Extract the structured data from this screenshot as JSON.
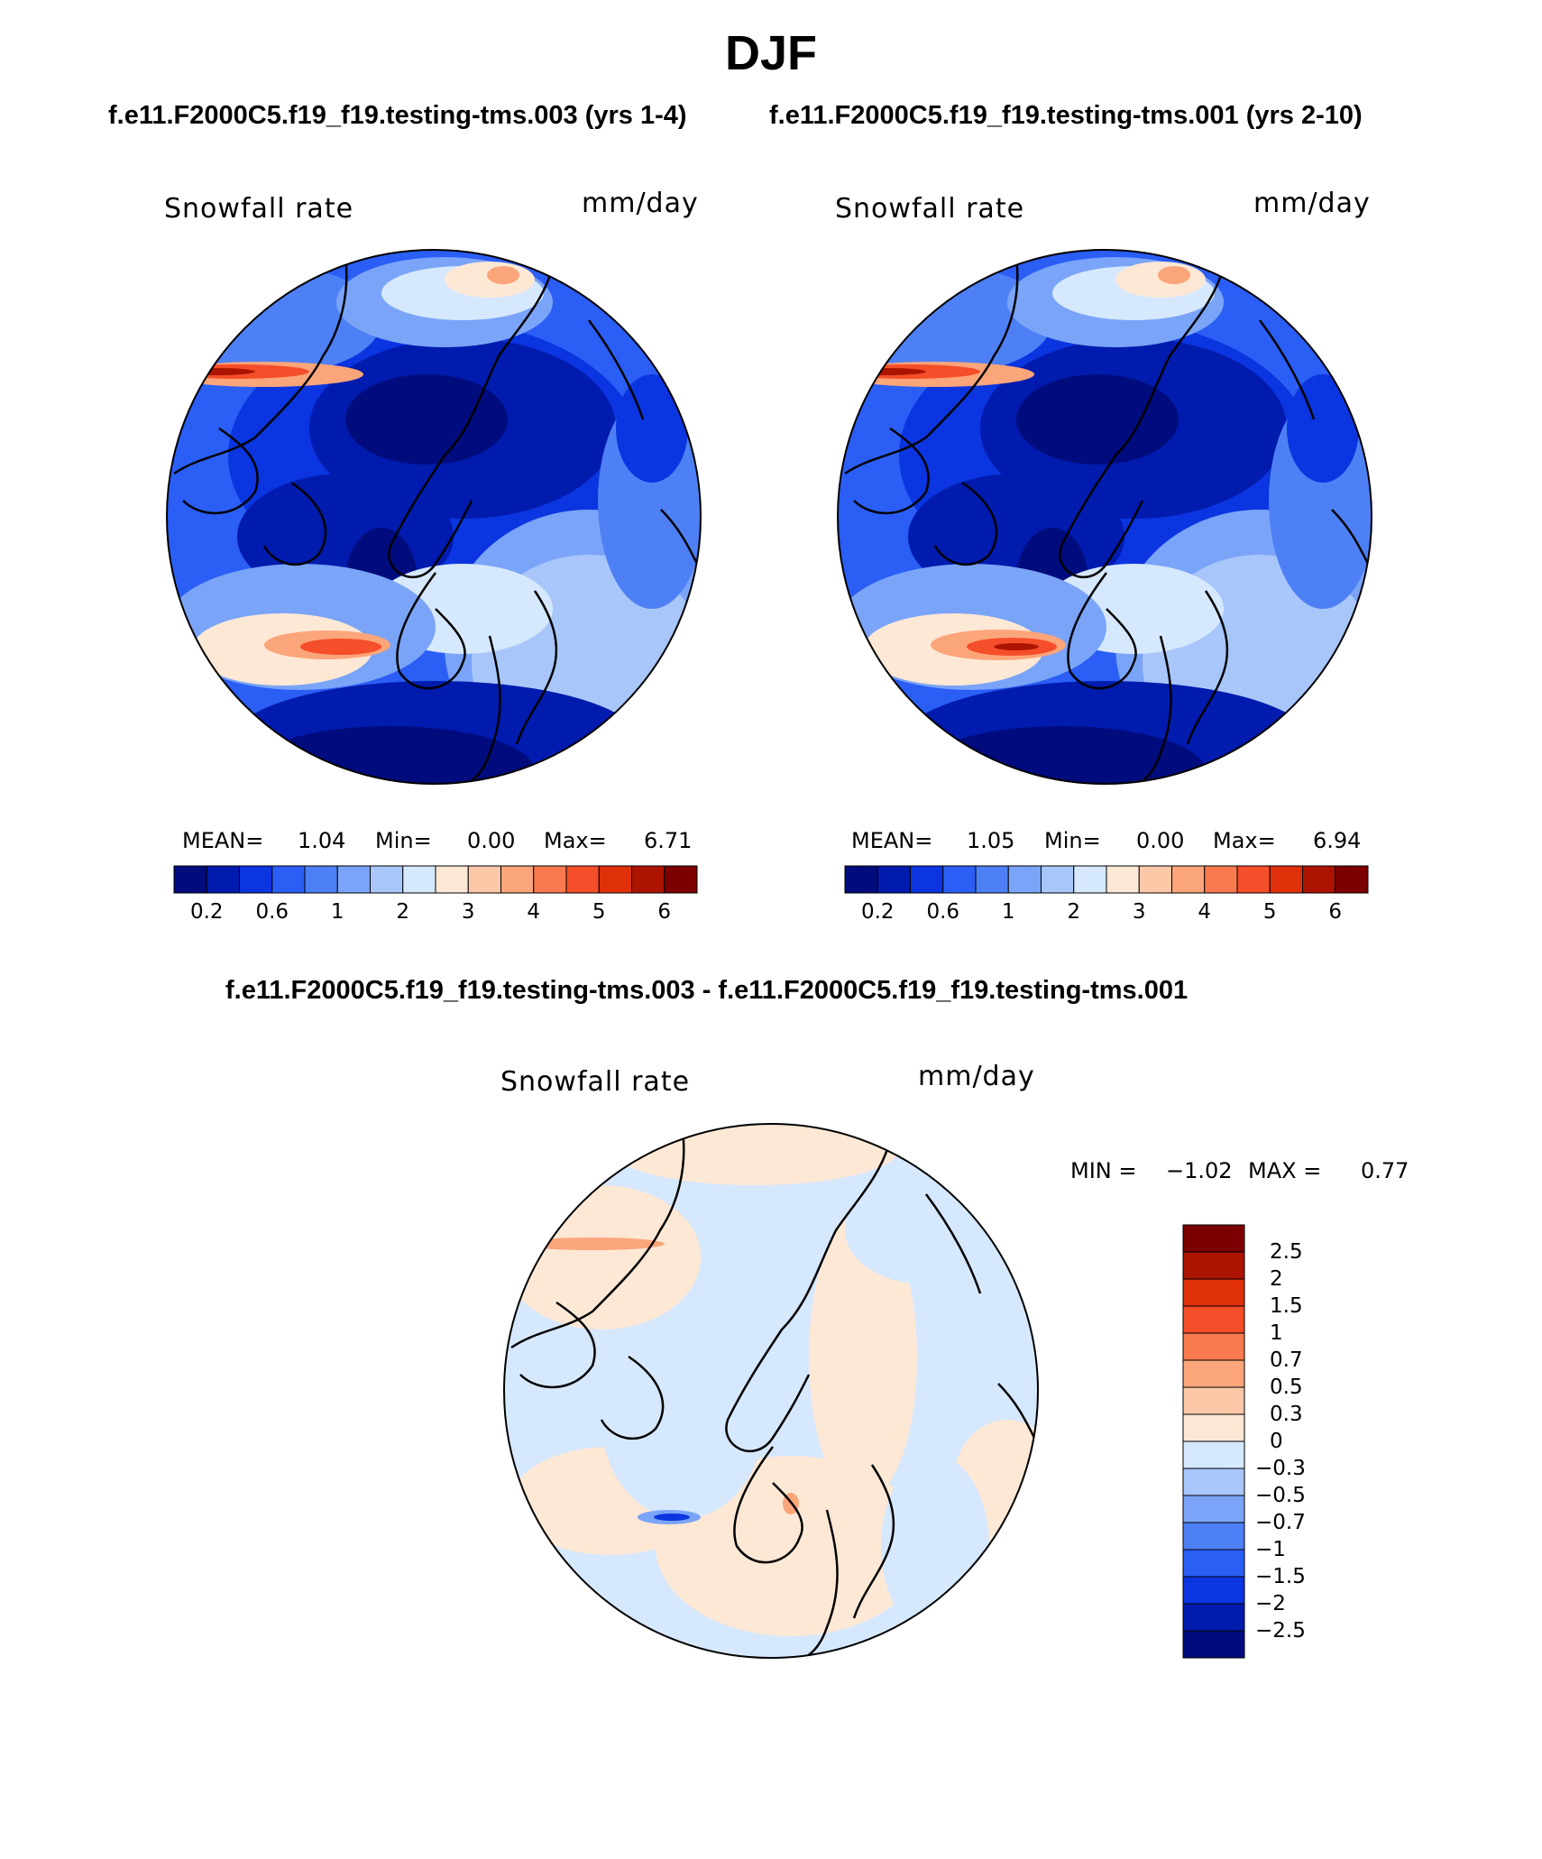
{
  "figure": {
    "title": "DJF",
    "panel_left_title": "f.e11.F2000C5.f19_f19.testing-tms.003 (yrs 1-4)",
    "panel_right_title": "f.e11.F2000C5.f19_f19.testing-tms.001 (yrs 2-10)",
    "diff_title": "f.e11.F2000C5.f19_f19.testing-tms.003 - f.e11.F2000C5.f19_f19.testing-tms.001"
  },
  "panels": [
    {
      "variable": "Snowfall rate",
      "units": "mm/day",
      "mean_label": "MEAN=",
      "mean_value": "1.04",
      "min_label": "Min=",
      "min_value": "0.00",
      "max_label": "Max=",
      "max_value": "6.71"
    },
    {
      "variable": "Snowfall rate",
      "units": "mm/day",
      "mean_label": "MEAN=",
      "mean_value": "1.05",
      "min_label": "Min=",
      "min_value": "0.00",
      "max_label": "Max=",
      "max_value": "6.94"
    }
  ],
  "diff_panel": {
    "variable": "Snowfall rate",
    "units": "mm/day",
    "min_label": "MIN =",
    "min_value": "−1.02",
    "max_label": "MAX =",
    "max_value": "0.77"
  },
  "colorbar_main": {
    "tick_labels": [
      "0.2",
      "0.6",
      "1",
      "2",
      "3",
      "4",
      "5",
      "6"
    ],
    "colors": [
      "#000c7d",
      "#001bad",
      "#0a35e0",
      "#2a5ef5",
      "#4e80f5",
      "#7aa4f7",
      "#a8c6fa",
      "#d6e8fd",
      "#fde8d6",
      "#fcc8a8",
      "#fba57a",
      "#f97a4e",
      "#f54e2a",
      "#e0300a",
      "#ad1400",
      "#7d0000"
    ]
  },
  "colorbar_diff": {
    "tick_labels": [
      "2.5",
      "2",
      "1.5",
      "1",
      "0.7",
      "0.5",
      "0.3",
      "0",
      "−0.3",
      "−0.5",
      "−0.7",
      "−1",
      "−1.5",
      "−2",
      "−2.5"
    ],
    "colors_top_to_bottom": [
      "#7d0000",
      "#ad1400",
      "#e0300a",
      "#f54e2a",
      "#f97a4e",
      "#fba57a",
      "#fcc8a8",
      "#fde8d6",
      "#d6e8fd",
      "#a8c6fa",
      "#7aa4f7",
      "#4e80f5",
      "#2a5ef5",
      "#0a35e0",
      "#001bad",
      "#000c7d"
    ]
  },
  "map_colors": {
    "deep": "#000c7d",
    "dark": "#001bad",
    "blue": "#0a35e0",
    "mid": "#2a5ef5",
    "med": "#4e80f5",
    "light": "#7aa4f7",
    "pale": "#a8c6fa",
    "paler": "#d6e8fd",
    "peach": "#fde8d6",
    "salmon": "#fba57a",
    "orange": "#f54e2a",
    "red": "#ad1400"
  }
}
